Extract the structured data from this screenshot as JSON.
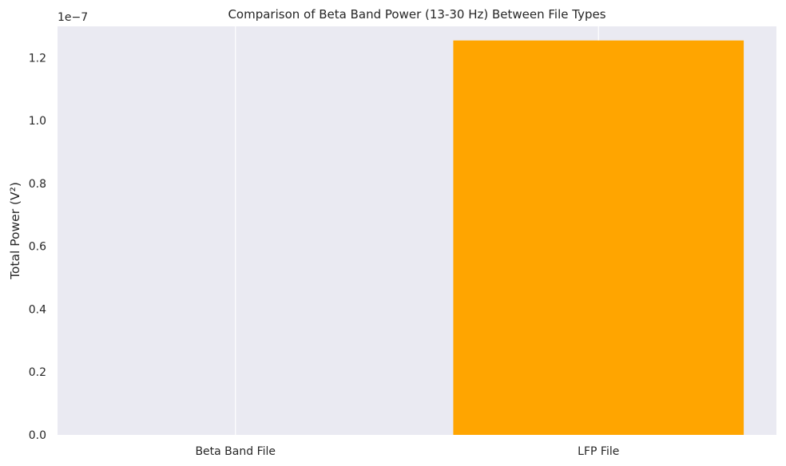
{
  "chart_data": {
    "type": "bar",
    "title": "Comparison of Beta Band Power (13-30 Hz) Between File Types",
    "xlabel": "",
    "ylabel": "Total Power (V²)",
    "categories": [
      "Beta Band File",
      "LFP File"
    ],
    "values": [
      0.0,
      1.255e-07
    ],
    "bar_colors": [
      "#FFA500",
      "#FFA500"
    ],
    "ylim": [
      0,
      1.3e-07
    ],
    "yticks": [
      0.0,
      2e-08,
      4e-08,
      6e-08,
      8e-08,
      1e-07,
      1.2e-07
    ],
    "ytick_labels": [
      "0.0",
      "0.2",
      "0.4",
      "0.6",
      "0.8",
      "1.0",
      "1.2"
    ],
    "offset_label": "1e−7",
    "grid": true,
    "background_color": "#EAEAF2",
    "grid_color": "#FFFFFF"
  }
}
